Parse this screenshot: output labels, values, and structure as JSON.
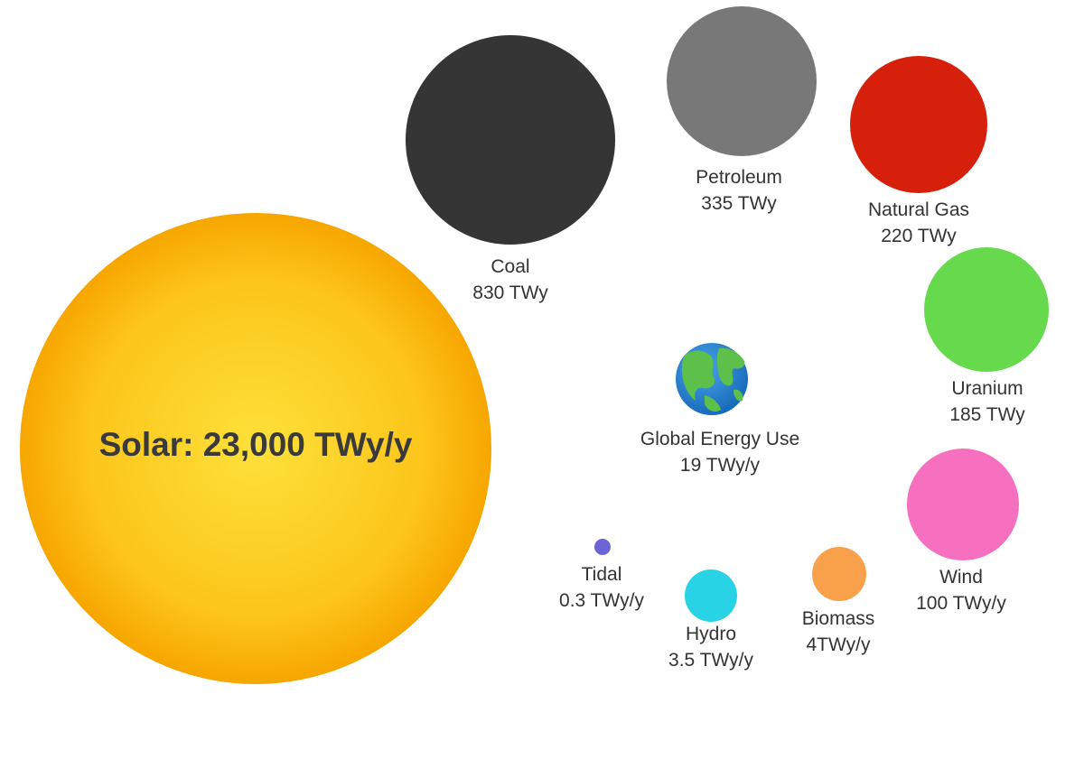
{
  "sources": [
    {
      "key": "solar",
      "label": "Solar: 23,000 TWy/y",
      "color": "#fbbf0e"
    },
    {
      "key": "coal",
      "name": "Coal",
      "value": "830 TWy",
      "color": "#353535"
    },
    {
      "key": "petroleum",
      "name": "Petroleum",
      "value": "335 TWy",
      "color": "#787878"
    },
    {
      "key": "natural-gas",
      "name": "Natural Gas",
      "value": "220 TWy",
      "color": "#d6200c"
    },
    {
      "key": "uranium",
      "name": "Uranium",
      "value": "185 TWy",
      "color": "#66d94d"
    },
    {
      "key": "global-energy-use",
      "name": "Global Energy Use",
      "value": "19 TWy/y",
      "icon": "globe-icon"
    },
    {
      "key": "wind",
      "name": "Wind",
      "value": "100 TWy/y",
      "color": "#f770c0"
    },
    {
      "key": "biomass",
      "name": "Biomass",
      "value": "4TWy/y",
      "color": "#f8a04a"
    },
    {
      "key": "hydro",
      "name": "Hydro",
      "value": "3.5 TWy/y",
      "color": "#27d3e5"
    },
    {
      "key": "tidal",
      "name": "Tidal",
      "value": "0.3 TWy/y",
      "color": "#6b63d6"
    }
  ]
}
